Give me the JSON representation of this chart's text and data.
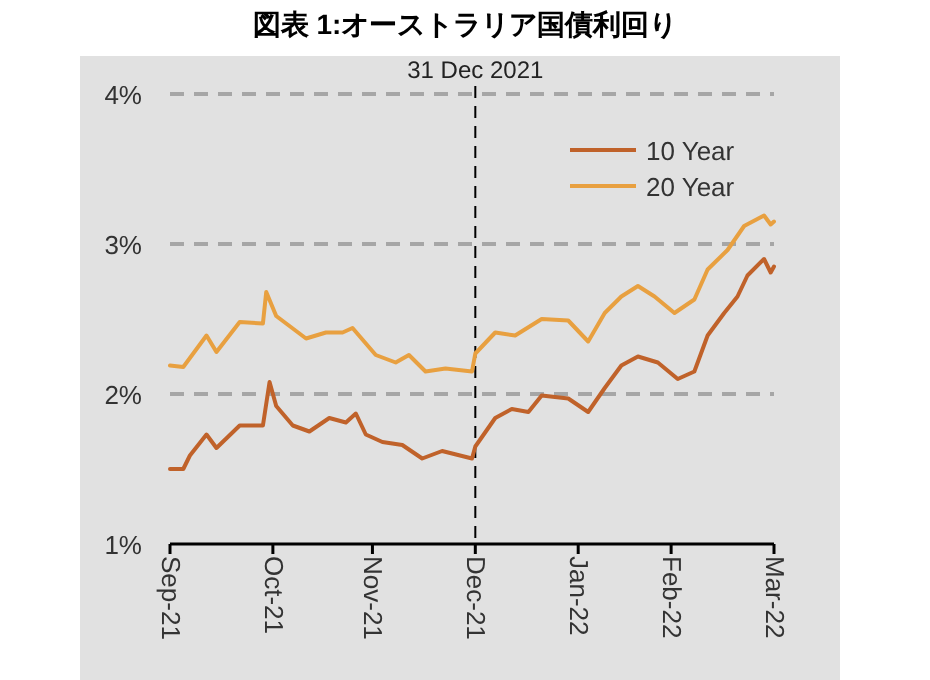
{
  "chart_data": {
    "type": "line",
    "title": "図表 1:オーストラリア国債利回り",
    "xlim": [
      "2021-09-30",
      "2022-03-31"
    ],
    "xticks": [
      {
        "value": "2021-09-30",
        "label": "Sep-21"
      },
      {
        "value": "2021-10-31",
        "label": "Oct-21"
      },
      {
        "value": "2021-11-30",
        "label": "Nov-21"
      },
      {
        "value": "2021-12-31",
        "label": "Dec-21"
      },
      {
        "value": "2022-01-31",
        "label": "Jan-22"
      },
      {
        "value": "2022-02-28",
        "label": "Feb-22"
      },
      {
        "value": "2022-03-31",
        "label": "Mar-22"
      }
    ],
    "ylim": [
      1,
      4
    ],
    "yticks": [
      {
        "value": 1,
        "label": "1%"
      },
      {
        "value": 2,
        "label": "2%"
      },
      {
        "value": 3,
        "label": "3%"
      },
      {
        "value": 4,
        "label": "4%"
      }
    ],
    "grid": "y",
    "legend": "top right",
    "line_style": "solid",
    "ref_lines": [
      {
        "axis": "x",
        "value": "2021-12-31",
        "label": "31 Dec 2021",
        "color": "#000000",
        "line_style": "dashed"
      }
    ],
    "series": [
      {
        "name": "10 Year",
        "color": "#c0622a",
        "x": [
          "2021-09-30",
          "2021-10-04",
          "2021-10-06",
          "2021-10-11",
          "2021-10-14",
          "2021-10-21",
          "2021-10-28",
          "2021-10-30",
          "2021-11-01",
          "2021-11-06",
          "2021-11-11",
          "2021-11-17",
          "2021-11-22",
          "2021-11-25",
          "2021-11-28",
          "2021-12-03",
          "2021-12-09",
          "2021-12-15",
          "2021-12-21",
          "2021-12-30",
          "2021-12-31",
          "2022-01-06",
          "2022-01-11",
          "2022-01-16",
          "2022-01-20",
          "2022-01-28",
          "2022-02-03",
          "2022-02-08",
          "2022-02-13",
          "2022-02-18",
          "2022-02-24",
          "2022-03-02",
          "2022-03-07",
          "2022-03-11",
          "2022-03-16",
          "2022-03-20",
          "2022-03-23",
          "2022-03-28",
          "2022-03-30",
          "2022-03-31"
        ],
        "values": [
          1.5,
          1.5,
          1.59,
          1.73,
          1.64,
          1.79,
          1.79,
          2.08,
          1.92,
          1.79,
          1.75,
          1.84,
          1.81,
          1.87,
          1.73,
          1.68,
          1.66,
          1.57,
          1.62,
          1.57,
          1.65,
          1.84,
          1.9,
          1.88,
          1.99,
          1.97,
          1.88,
          2.04,
          2.19,
          2.25,
          2.21,
          2.1,
          2.15,
          2.39,
          2.54,
          2.65,
          2.79,
          2.9,
          2.81,
          2.85
        ]
      },
      {
        "name": "20 Year",
        "color": "#e8a040",
        "x": [
          "2021-09-30",
          "2021-10-04",
          "2021-10-11",
          "2021-10-14",
          "2021-10-21",
          "2021-10-28",
          "2021-10-29",
          "2021-11-01",
          "2021-11-10",
          "2021-11-16",
          "2021-11-21",
          "2021-11-24",
          "2021-12-01",
          "2021-12-07",
          "2021-12-11",
          "2021-12-16",
          "2021-12-22",
          "2021-12-30",
          "2021-12-31",
          "2022-01-06",
          "2022-01-12",
          "2022-01-20",
          "2022-01-28",
          "2022-02-03",
          "2022-02-08",
          "2022-02-13",
          "2022-02-18",
          "2022-02-23",
          "2022-03-01",
          "2022-03-07",
          "2022-03-11",
          "2022-03-17",
          "2022-03-22",
          "2022-03-28",
          "2022-03-30",
          "2022-03-31"
        ],
        "values": [
          2.19,
          2.18,
          2.39,
          2.28,
          2.48,
          2.47,
          2.68,
          2.52,
          2.37,
          2.41,
          2.41,
          2.44,
          2.26,
          2.21,
          2.26,
          2.15,
          2.17,
          2.15,
          2.27,
          2.41,
          2.39,
          2.5,
          2.49,
          2.35,
          2.54,
          2.65,
          2.72,
          2.65,
          2.54,
          2.63,
          2.83,
          2.96,
          3.12,
          3.19,
          3.13,
          3.15
        ]
      }
    ]
  }
}
